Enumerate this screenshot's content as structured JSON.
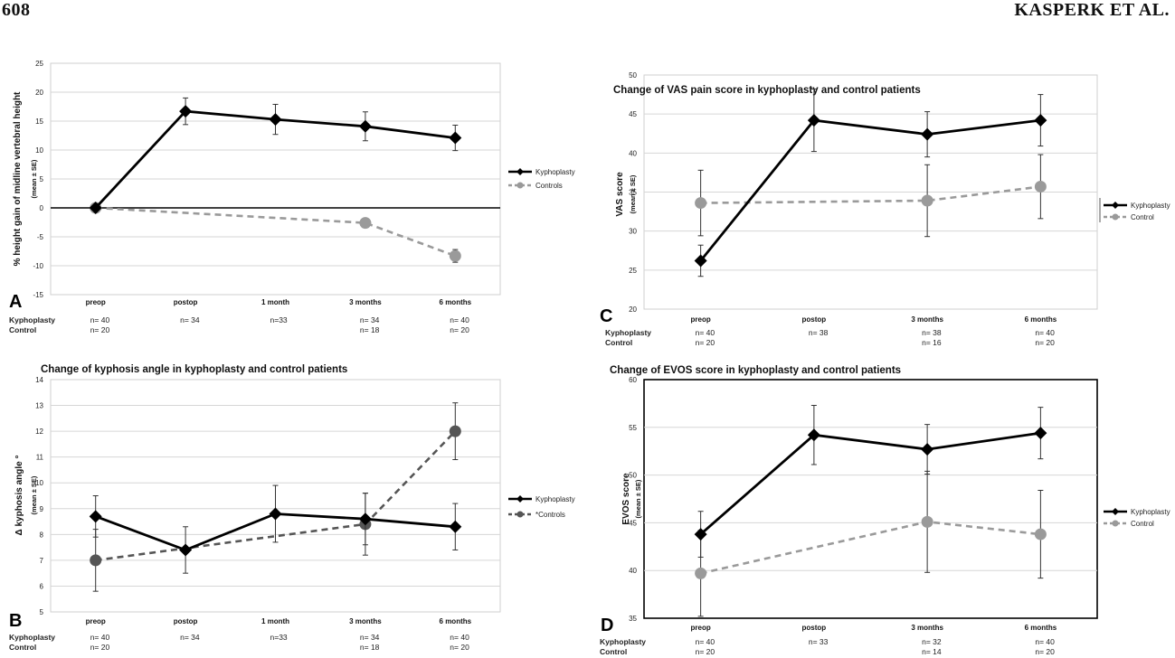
{
  "header": {
    "page_number": "608",
    "authors": "KASPERK ET AL."
  },
  "chart_data": [
    {
      "panel": "A",
      "type": "line",
      "title": "",
      "ylabel": "% height gain of midline vertebral height",
      "ylabel_sub": "(mean ± SE)",
      "ylim": [
        -15,
        25
      ],
      "yticks": [
        -15,
        -10,
        -5,
        0,
        5,
        10,
        15,
        20,
        25
      ],
      "categories": [
        "preop",
        "postop",
        "1 month",
        "3 months",
        "6 months"
      ],
      "series": [
        {
          "name": "Kyphoplasty",
          "color": "#000000",
          "dashed": false,
          "marker": "diamond",
          "values": [
            0,
            16.7,
            15.3,
            14.1,
            12.1
          ],
          "errors": [
            null,
            2.3,
            2.6,
            2.5,
            2.2
          ]
        },
        {
          "name": "Controls",
          "color": "#9a9a9a",
          "dashed": true,
          "marker": "circle",
          "values": [
            0,
            null,
            null,
            -2.6,
            -8.3
          ],
          "errors": [
            null,
            null,
            null,
            null,
            1.1
          ]
        }
      ],
      "legend_position": "right",
      "count_labels": [
        "Kyphoplasty",
        "Control"
      ],
      "counts": [
        [
          "n= 40",
          "n= 34",
          "n=33",
          "n= 34",
          "n= 40"
        ],
        [
          "n= 20",
          "",
          "",
          "n= 18",
          "n= 20"
        ]
      ]
    },
    {
      "panel": "B",
      "type": "line",
      "title": "Change of kyphosis angle in kyphoplasty and control patients",
      "ylabel": "Δ kyphosis angle °",
      "ylabel_sub": "(mean ± SE)",
      "ylim": [
        5,
        14
      ],
      "yticks": [
        5,
        6,
        7,
        8,
        9,
        10,
        11,
        12,
        13,
        14
      ],
      "categories": [
        "preop",
        "postop",
        "1 month",
        "3 months",
        "6 months"
      ],
      "series": [
        {
          "name": "Kyphoplasty",
          "color": "#000000",
          "dashed": false,
          "marker": "diamond",
          "values": [
            8.7,
            7.4,
            8.8,
            8.6,
            8.3
          ],
          "errors": [
            0.8,
            0.9,
            1.1,
            1.0,
            0.9
          ]
        },
        {
          "name": "*Controls",
          "color": "#555555",
          "dashed": true,
          "marker": "circle",
          "values": [
            7.0,
            null,
            null,
            8.4,
            12.0
          ],
          "errors": [
            1.2,
            null,
            null,
            1.2,
            1.1
          ]
        }
      ],
      "legend_position": "right",
      "count_labels": [
        "Kyphoplasty",
        "Control"
      ],
      "counts": [
        [
          "n= 40",
          "n= 34",
          "n=33",
          "n= 34",
          "n= 40"
        ],
        [
          "n= 20",
          "",
          "",
          "n= 18",
          "n= 20"
        ]
      ]
    },
    {
      "panel": "C",
      "type": "line",
      "title": "Change of VAS pain score in kyphoplasty and control patients",
      "ylabel": "VAS score",
      "ylabel_sub": "(mean ± SE)",
      "ylim": [
        20,
        50
      ],
      "yticks": [
        20,
        25,
        30,
        35,
        40,
        45,
        50
      ],
      "categories": [
        "preop",
        "postop",
        "3 months",
        "6 months"
      ],
      "series": [
        {
          "name": "Kyphoplasty",
          "color": "#000000",
          "dashed": false,
          "marker": "diamond",
          "values": [
            26.2,
            44.2,
            42.4,
            44.2
          ],
          "errors": [
            2.0,
            4.0,
            2.9,
            3.3
          ]
        },
        {
          "name": "Control",
          "color": "#9a9a9a",
          "dashed": true,
          "marker": "circle",
          "values": [
            33.6,
            null,
            33.9,
            35.7
          ],
          "errors": [
            4.2,
            null,
            4.6,
            4.1
          ]
        }
      ],
      "legend_position": "right",
      "count_labels": [
        "Kyphoplasty",
        "Control"
      ],
      "counts": [
        [
          "n= 40",
          "n= 38",
          "n= 38",
          "n= 40"
        ],
        [
          "n= 20",
          "",
          "n= 16",
          "n= 20"
        ]
      ]
    },
    {
      "panel": "D",
      "type": "line",
      "title": "Change of EVOS score in kyphoplasty and control patients",
      "ylabel": "EVOS score",
      "ylabel_sub": "(mean ± SE)",
      "ylim": [
        35,
        60
      ],
      "yticks": [
        35,
        40,
        45,
        50,
        55,
        60
      ],
      "categories": [
        "preop",
        "postop",
        "3 months",
        "6 months"
      ],
      "series": [
        {
          "name": "Kyphoplasty",
          "color": "#000000",
          "dashed": false,
          "marker": "diamond",
          "values": [
            43.8,
            54.2,
            52.7,
            54.4
          ],
          "errors": [
            2.4,
            3.1,
            2.6,
            2.7
          ]
        },
        {
          "name": "Control",
          "color": "#9a9a9a",
          "dashed": true,
          "marker": "circle",
          "values": [
            39.7,
            null,
            45.1,
            43.8
          ],
          "errors": [
            4.5,
            null,
            5.3,
            4.6
          ]
        }
      ],
      "legend_position": "right",
      "count_labels": [
        "Kyphoplasty",
        "Control"
      ],
      "counts": [
        [
          "n= 40",
          "n= 33",
          "n= 32",
          "n= 40"
        ],
        [
          "n= 20",
          "",
          "n= 14",
          "n= 20"
        ]
      ]
    }
  ]
}
